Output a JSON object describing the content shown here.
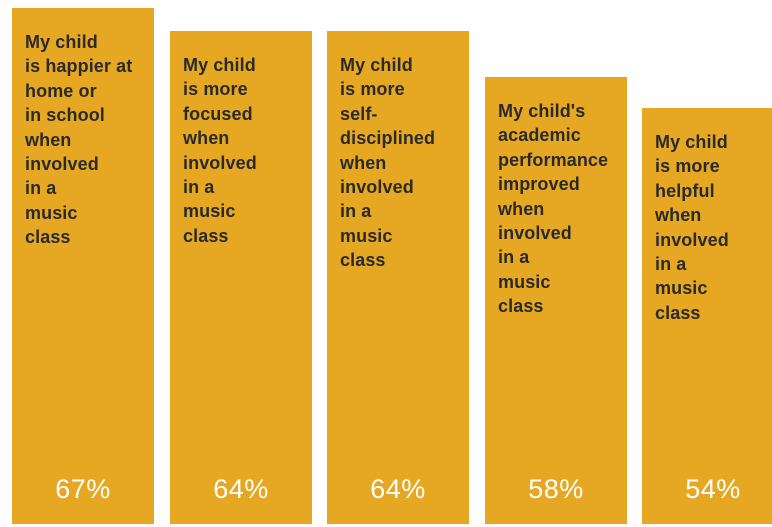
{
  "chart_data": {
    "type": "bar",
    "orientation": "vertical",
    "value_unit": "%",
    "bar_color": "#e6a723",
    "value_color": "#ffffff",
    "label_color": "#2a2a2a",
    "background": "#ffffff",
    "title": "",
    "xlabel": "",
    "ylabel": "",
    "ylim": [
      0,
      67
    ],
    "grid": false,
    "categories": [
      "My child\nis happier at\nhome or\nin school\nwhen\ninvolved\nin a\nmusic\nclass",
      "My child\nis more\nfocused\nwhen\ninvolved\nin a\nmusic\nclass",
      "My child\nis more\nself-\ndisciplined\nwhen\ninvolved\nin a\nmusic\nclass",
      "My child's\nacademic\nperformance\nimproved\nwhen\ninvolved\nin a\nmusic\nclass",
      "My child\nis more\nhelpful\nwhen\ninvolved\nin a\nmusic\nclass"
    ],
    "values": [
      67,
      64,
      64,
      58,
      54
    ],
    "value_labels": [
      "67%",
      "64%",
      "64%",
      "58%",
      "54%"
    ]
  }
}
